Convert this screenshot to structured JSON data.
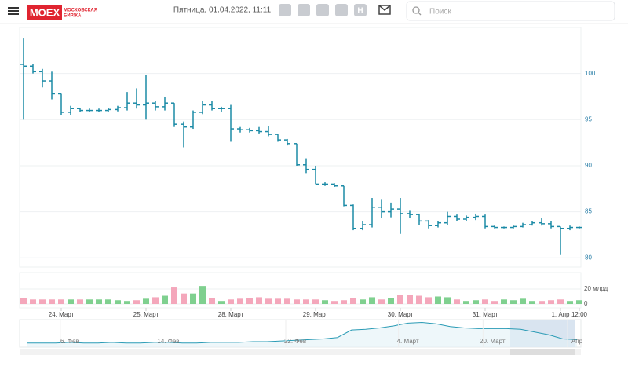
{
  "header": {
    "logo": "MOEX",
    "logo_sub_1": "МОСКОВСКАЯ",
    "logo_sub_2": "БИРЖА",
    "datetime": "Пятница, 01.04.2022, 11:11",
    "search_placeholder": "Поиск",
    "social": [
      "Н"
    ]
  },
  "chart_data": {
    "type": "ohlc",
    "up_color": "#7fd08f",
    "down_color": "#f4a7bb",
    "color": "#1b8aa6",
    "ylim": [
      79,
      105
    ],
    "yticks": [
      80,
      85,
      90,
      95,
      100
    ],
    "grid": true,
    "volume_ylim": [
      0,
      42
    ],
    "volume_yticks": [
      {
        "value": 0,
        "label": "0"
      },
      {
        "value": 20,
        "label": "20 млрд"
      }
    ],
    "x_labels": [
      {
        "index": 4,
        "label": "24. Март"
      },
      {
        "index": 13,
        "label": "25. Март"
      },
      {
        "index": 22,
        "label": "28. Март"
      },
      {
        "index": 31,
        "label": "29. Март"
      },
      {
        "index": 40,
        "label": "30. Март"
      },
      {
        "index": 49,
        "label": "31. Март"
      },
      {
        "index": 57,
        "label": "1. Апр"
      },
      {
        "index": 59,
        "label": "12:00"
      }
    ],
    "open": [
      101,
      100.8,
      100.2,
      99.2,
      97.8,
      95.8,
      96.2,
      96,
      96,
      96,
      96.1,
      96.3,
      96.8,
      96.6,
      96.8,
      96.4,
      96.8,
      94.5,
      94.2,
      95.8,
      96.6,
      96.2,
      96.2,
      94,
      93.9,
      93.8,
      93.7,
      93.4,
      92.8,
      92.4,
      90.1,
      89.6,
      88,
      88,
      87.8,
      85.7,
      83.2,
      83.6,
      85.5,
      85,
      85.3,
      84.8,
      84.7,
      84,
      83.5,
      83.8,
      84.5,
      84.2,
      84.4,
      84.5,
      83.4,
      83.3,
      83.3,
      83.4,
      83.6,
      83.8,
      83.7,
      83.4,
      83.2,
      83.3
    ],
    "high": [
      103.8,
      101,
      100.5,
      100.2,
      97.8,
      96.5,
      96.3,
      96.2,
      96.2,
      96.3,
      96.5,
      98,
      98.4,
      99.8,
      97,
      97.5,
      96.8,
      94.8,
      96,
      97,
      97,
      96.4,
      96.6,
      94.2,
      94.1,
      94.2,
      94.3,
      93.4,
      92.9,
      92.4,
      90.8,
      90,
      88.2,
      88.1,
      87.8,
      85.8,
      84,
      86.5,
      86.3,
      86,
      86.5,
      85.1,
      84.8,
      84.1,
      84,
      85,
      84.7,
      84.6,
      84.8,
      84.7,
      83.5,
      83.4,
      83.5,
      83.8,
      84,
      84.3,
      84,
      83.4,
      83.5,
      83.4
    ],
    "low": [
      95,
      100,
      98.5,
      97.2,
      95.5,
      95.5,
      95.8,
      95.8,
      95.8,
      95.8,
      95.9,
      96,
      96.2,
      95,
      96,
      96,
      94.2,
      92,
      94,
      95.6,
      96,
      95.8,
      92.6,
      93.6,
      93.6,
      93.5,
      93.2,
      92.6,
      92.2,
      90,
      89.2,
      88,
      87.8,
      87.7,
      85.6,
      83,
      83,
      83.3,
      84.3,
      84.4,
      82.6,
      84.3,
      83.6,
      83.2,
      83.3,
      83.6,
      84,
      84,
      84.1,
      83.2,
      83.2,
      83.2,
      83.2,
      83.3,
      83.5,
      83.5,
      83.2,
      80.3,
      83,
      83.2
    ],
    "close": [
      100.8,
      100.2,
      99.2,
      97.8,
      95.8,
      96.2,
      96,
      96,
      96,
      96.1,
      96.3,
      96.8,
      96.6,
      96.8,
      96.4,
      96.8,
      94.5,
      94.2,
      95.8,
      96.6,
      96.2,
      96.2,
      94,
      93.9,
      93.8,
      93.7,
      93.4,
      92.8,
      92.4,
      90.1,
      89.6,
      88,
      88,
      87.8,
      85.7,
      83.2,
      83.6,
      85.5,
      85,
      85.3,
      84.8,
      84.7,
      84,
      83.5,
      83.8,
      84.5,
      84.2,
      84.4,
      84.5,
      83.4,
      83.3,
      83.3,
      83.4,
      83.6,
      83.8,
      83.7,
      83.4,
      83.2,
      83.3,
      83.3
    ],
    "volume": [
      8,
      6,
      6,
      6,
      6,
      6,
      6,
      6,
      6,
      6,
      5,
      4,
      5,
      7,
      9,
      11,
      22,
      14,
      14,
      24,
      8,
      4,
      6,
      7,
      8,
      9,
      7,
      7,
      7,
      6,
      6,
      6,
      5,
      4,
      5,
      8,
      6,
      9,
      6,
      8,
      12,
      12,
      11,
      9,
      10,
      9,
      6,
      4,
      5,
      6,
      4,
      6,
      5,
      7,
      4,
      4,
      5,
      6,
      4,
      5
    ],
    "navigator": {
      "ylim": [
        0,
        40
      ],
      "color": "#2a9bb5",
      "categories": [
        null,
        null,
        null,
        "6. Фев",
        null,
        null,
        null,
        null,
        null,
        null,
        "14. Фев",
        null,
        null,
        null,
        null,
        null,
        null,
        null,
        null,
        "22. Фев",
        null,
        null,
        null,
        null,
        null,
        null,
        null,
        "4. Март",
        null,
        null,
        null,
        null,
        null,
        "20. Март",
        null,
        null,
        null,
        null,
        null,
        "Апр"
      ],
      "values": [
        6,
        6,
        6,
        7,
        6,
        6,
        7,
        6,
        6,
        7,
        7,
        6,
        6,
        7,
        7,
        7,
        8,
        8,
        9,
        10,
        11,
        12,
        14,
        25,
        26,
        28,
        31,
        35,
        36,
        34,
        30,
        28,
        27,
        27,
        27,
        26,
        22,
        18,
        12,
        11
      ]
    }
  }
}
